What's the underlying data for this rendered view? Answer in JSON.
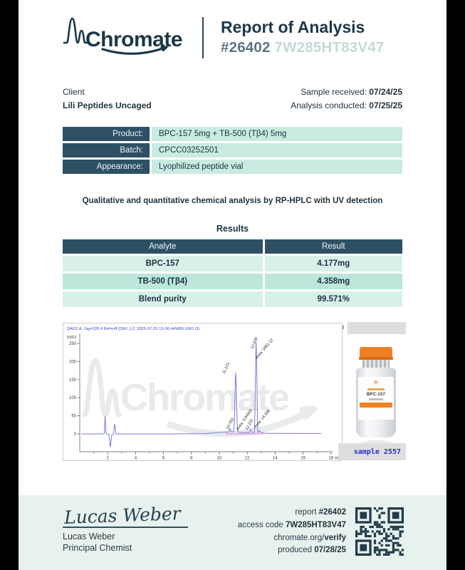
{
  "header": {
    "brand": "Chromate",
    "title": "Report of Analysis",
    "report_number": "#26402",
    "access_code": "7W285HT83V47"
  },
  "client": {
    "label": "Client",
    "name": "Lili Peptides Uncaged"
  },
  "dates": [
    {
      "label": "Sample received: ",
      "value": "07/24/25"
    },
    {
      "label": "Analysis conducted: ",
      "value": "07/25/25"
    }
  ],
  "product_info": [
    {
      "label": "Product:",
      "value": "BPC-157 5mg + TB-500 (Tβ4) 5mg"
    },
    {
      "label": "Batch:",
      "value": "CPCC03252501"
    },
    {
      "label": "Appearance:",
      "value": "Lyophilized peptide vial"
    }
  ],
  "method_note": "Qualitative and quantitative chemical analysis by RP-HPLC with UV detection",
  "results": {
    "title": "Results",
    "columns": [
      "Analyte",
      "Result"
    ],
    "rows": [
      {
        "analyte": "BPC-157",
        "result": "4.177mg"
      },
      {
        "analyte": "TB-500 (Tβ4)",
        "result": "4.358mg"
      },
      {
        "analyte": "Blend purity",
        "result": "99.571%"
      }
    ]
  },
  "chromatogram": {
    "tag": "chromatogram",
    "sample_tag": "sample 2557",
    "caption": "DAD1 A, Sig=220.4 Ref=off (DEF_LC 2025-07-25 13-36-44\\089-1001.D)",
    "y_axis_label": "mAU",
    "x_axis_label": "min",
    "x_ticks": [
      "2",
      "4",
      "6",
      "8",
      "10",
      "12",
      "14",
      "16",
      "18"
    ],
    "y_ticks": [
      "250",
      "200",
      "150",
      "100",
      "50",
      "0"
    ],
    "labels": {
      "rt1": "10.783",
      "rt2": "11.173",
      "area2": "Area: 3.94305",
      "rt3": "12.231",
      "rt4": "12.639",
      "area4": "Area: 1661.12",
      "area5": "Area: 14.336"
    },
    "vial_label": "BPC-157"
  },
  "footer": {
    "signature": "Lucas Weber",
    "signer_name": "Lucas Weber",
    "signer_role": "Principal Chemist",
    "lines": [
      {
        "label": "report ",
        "value": "#26402"
      },
      {
        "label": "access code ",
        "value": "7W285HT83V47"
      },
      {
        "label": "chromate.org/",
        "value": "verify"
      },
      {
        "label": "produced ",
        "value": "07/28/25"
      }
    ]
  },
  "colors": {
    "accent_dark": "#2d5065",
    "mint_light": "#d7f1e9",
    "mint_mid": "#bce7db",
    "footer_bg": "#e7f1ed",
    "trace_blue": "#7b7bdb",
    "integration_pink": "#e060c8",
    "tag_teal": "#1e7f6e",
    "sample_blue": "#2a2ad4",
    "vial_orange": "#ef8123",
    "navy_text": "#1e3748"
  },
  "chart_data": {
    "type": "line",
    "title": "DAD1 A, Sig=220.4 Ref=off (DEF_LC 2025-07-25 13-36-44\\089-1001.D)",
    "xlabel": "min",
    "ylabel": "mAU",
    "xlim": [
      0,
      18.5
    ],
    "ylim": [
      -45,
      265
    ],
    "x_ticks": [
      2,
      4,
      6,
      8,
      10,
      12,
      14,
      16,
      18
    ],
    "y_ticks": [
      0,
      50,
      100,
      150,
      200,
      250
    ],
    "grid": false,
    "legend": false,
    "series": [
      {
        "name": "DAD1 A UV signal",
        "baseline_mAU": 0,
        "peaks": [
          {
            "rt_min": 1.85,
            "height_mAU": 50
          },
          {
            "rt_min": 2.3,
            "height_mAU": -38
          },
          {
            "rt_min": 2.55,
            "height_mAU": 30
          },
          {
            "rt_min": 10.783,
            "height_mAU": 10
          },
          {
            "rt_min": 11.173,
            "height_mAU": 170
          },
          {
            "rt_min": 12.231,
            "height_mAU": 10
          },
          {
            "rt_min": 12.639,
            "height_mAU": 253
          }
        ]
      }
    ],
    "annotations": [
      "10.783",
      "11.173",
      "12.231",
      "12.639",
      "Area: 3.94305",
      "Area: 1661.12",
      "Area: 14.336"
    ]
  }
}
